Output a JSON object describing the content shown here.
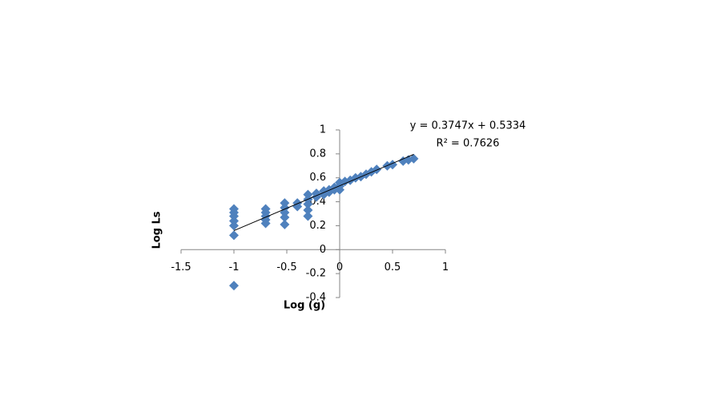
{
  "chart_data": {
    "type": "scatter",
    "x_label": "Log (g)",
    "y_label": "Log Ls",
    "x": [
      -1,
      -1,
      -1,
      -1,
      -1,
      -1,
      -1,
      -0.7,
      -0.7,
      -0.7,
      -0.7,
      -0.7,
      -0.52,
      -0.52,
      -0.52,
      -0.52,
      -0.52,
      -0.4,
      -0.4,
      -0.3,
      -0.3,
      -0.3,
      -0.3,
      -0.3,
      -0.22,
      -0.22,
      -0.15,
      -0.15,
      -0.1,
      -0.1,
      -0.05,
      -0.05,
      0,
      0,
      0,
      0.05,
      0.1,
      0.15,
      0.2,
      0.25,
      0.3,
      0.35,
      0.45,
      0.5,
      0.6,
      0.65,
      0.7
    ],
    "values": [
      0.34,
      0.31,
      0.28,
      0.24,
      0.2,
      0.12,
      -0.3,
      0.34,
      0.31,
      0.28,
      0.25,
      0.22,
      0.39,
      0.35,
      0.31,
      0.27,
      0.21,
      0.39,
      0.36,
      0.46,
      0.42,
      0.38,
      0.33,
      0.28,
      0.47,
      0.44,
      0.49,
      0.46,
      0.5,
      0.48,
      0.52,
      0.5,
      0.56,
      0.53,
      0.5,
      0.57,
      0.58,
      0.6,
      0.61,
      0.63,
      0.65,
      0.67,
      0.7,
      0.71,
      0.74,
      0.75,
      0.76
    ],
    "color": "#4f81bd",
    "trendline": {
      "slope": 0.3747,
      "intercept": 0.5334,
      "x_range": [
        -1,
        0.7
      ],
      "equation": "y = 0.3747x + 0.5334",
      "r2_label": "R² = 0.7626",
      "color": "#000000"
    },
    "xlim": [
      -1.5,
      1
    ],
    "ylim": [
      -0.4,
      1
    ],
    "xticks": [
      -1.5,
      -1,
      -0.5,
      0,
      0.5,
      1
    ],
    "yticks": [
      -0.4,
      -0.2,
      0,
      0.2,
      0.4,
      0.6,
      0.8,
      1
    ]
  }
}
